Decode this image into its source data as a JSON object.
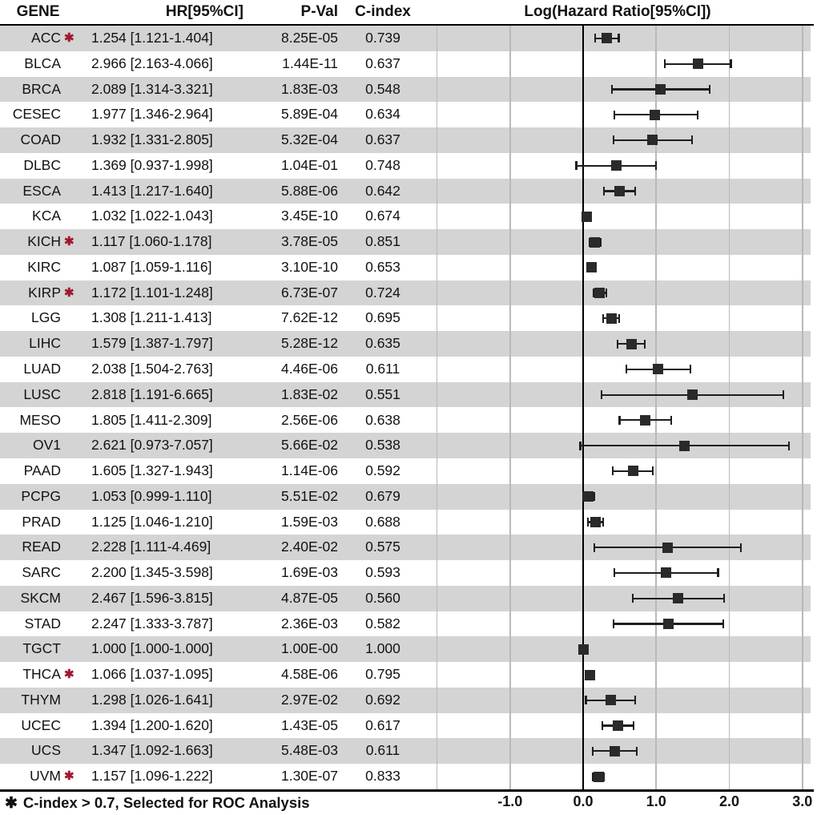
{
  "header": {
    "columns": [
      "GENE",
      "HR[95%CI]",
      "P-Val",
      "C-index"
    ]
  },
  "chart_data": {
    "type": "forest",
    "title": "Log(Hazard Ratio[95%CI])",
    "x_axis": {
      "scale": "log2(hazard ratio)",
      "tick_labels": [
        "-1.0",
        "0.0",
        "1.0",
        "2.0",
        "3.0"
      ],
      "tick_values": [
        -1,
        0,
        1,
        2,
        3
      ],
      "gridline_values": [
        -2,
        -1,
        1,
        2,
        3
      ],
      "zero_line_value": 0,
      "xlim": [
        -2.06,
        3.16
      ]
    },
    "rows": [
      {
        "gene": "ACC",
        "selected": true,
        "hr": 1.254,
        "lo": 1.121,
        "hi": 1.404,
        "hr_text": "1.254 [1.121-1.404]",
        "pval": "8.25E-05",
        "cindex": "0.739"
      },
      {
        "gene": "BLCA",
        "selected": false,
        "hr": 2.966,
        "lo": 2.163,
        "hi": 4.066,
        "hr_text": "2.966 [2.163-4.066]",
        "pval": "1.44E-11",
        "cindex": "0.637"
      },
      {
        "gene": "BRCA",
        "selected": false,
        "hr": 2.089,
        "lo": 1.314,
        "hi": 3.321,
        "hr_text": "2.089 [1.314-3.321]",
        "pval": "1.83E-03",
        "cindex": "0.548"
      },
      {
        "gene": "CESEC",
        "selected": false,
        "hr": 1.977,
        "lo": 1.346,
        "hi": 2.964,
        "hr_text": "1.977 [1.346-2.964]",
        "pval": "5.89E-04",
        "cindex": "0.634"
      },
      {
        "gene": "COAD",
        "selected": false,
        "hr": 1.932,
        "lo": 1.331,
        "hi": 2.805,
        "hr_text": "1.932 [1.331-2.805]",
        "pval": "5.32E-04",
        "cindex": "0.637"
      },
      {
        "gene": "DLBC",
        "selected": false,
        "hr": 1.369,
        "lo": 0.937,
        "hi": 1.998,
        "hr_text": "1.369 [0.937-1.998]",
        "pval": "1.04E-01",
        "cindex": "0.748"
      },
      {
        "gene": "ESCA",
        "selected": false,
        "hr": 1.413,
        "lo": 1.217,
        "hi": 1.64,
        "hr_text": "1.413 [1.217-1.640]",
        "pval": "5.88E-06",
        "cindex": "0.642"
      },
      {
        "gene": "KCA",
        "selected": false,
        "hr": 1.032,
        "lo": 1.022,
        "hi": 1.043,
        "hr_text": "1.032 [1.022-1.043]",
        "pval": "3.45E-10",
        "cindex": "0.674"
      },
      {
        "gene": "KICH",
        "selected": true,
        "hr": 1.117,
        "lo": 1.06,
        "hi": 1.178,
        "hr_text": "1.117 [1.060-1.178]",
        "pval": "3.78E-05",
        "cindex": "0.851"
      },
      {
        "gene": "KIRC",
        "selected": false,
        "hr": 1.087,
        "lo": 1.059,
        "hi": 1.116,
        "hr_text": "1.087 [1.059-1.116]",
        "pval": "3.10E-10",
        "cindex": "0.653"
      },
      {
        "gene": "KIRP",
        "selected": true,
        "hr": 1.172,
        "lo": 1.101,
        "hi": 1.248,
        "hr_text": "1.172 [1.101-1.248]",
        "pval": "6.73E-07",
        "cindex": "0.724"
      },
      {
        "gene": "LGG",
        "selected": false,
        "hr": 1.308,
        "lo": 1.211,
        "hi": 1.413,
        "hr_text": "1.308 [1.211-1.413]",
        "pval": "7.62E-12",
        "cindex": "0.695"
      },
      {
        "gene": "LIHC",
        "selected": false,
        "hr": 1.579,
        "lo": 1.387,
        "hi": 1.797,
        "hr_text": "1.579 [1.387-1.797]",
        "pval": "5.28E-12",
        "cindex": "0.635"
      },
      {
        "gene": "LUAD",
        "selected": false,
        "hr": 2.038,
        "lo": 1.504,
        "hi": 2.763,
        "hr_text": "2.038 [1.504-2.763]",
        "pval": "4.46E-06",
        "cindex": "0.611"
      },
      {
        "gene": "LUSC",
        "selected": false,
        "hr": 2.818,
        "lo": 1.191,
        "hi": 6.665,
        "hr_text": "2.818 [1.191-6.665]",
        "pval": "1.83E-02",
        "cindex": "0.551"
      },
      {
        "gene": "MESO",
        "selected": false,
        "hr": 1.805,
        "lo": 1.411,
        "hi": 2.309,
        "hr_text": "1.805 [1.411-2.309]",
        "pval": "2.56E-06",
        "cindex": "0.638"
      },
      {
        "gene": "OV1",
        "selected": false,
        "hr": 2.621,
        "lo": 0.973,
        "hi": 7.057,
        "hr_text": "2.621 [0.973-7.057]",
        "pval": "5.66E-02",
        "cindex": "0.538"
      },
      {
        "gene": "PAAD",
        "selected": false,
        "hr": 1.605,
        "lo": 1.327,
        "hi": 1.943,
        "hr_text": "1.605 [1.327-1.943]",
        "pval": "1.14E-06",
        "cindex": "0.592"
      },
      {
        "gene": "PCPG",
        "selected": false,
        "hr": 1.053,
        "lo": 0.999,
        "hi": 1.11,
        "hr_text": "1.053 [0.999-1.110]",
        "pval": "5.51E-02",
        "cindex": "0.679"
      },
      {
        "gene": "PRAD",
        "selected": false,
        "hr": 1.125,
        "lo": 1.046,
        "hi": 1.21,
        "hr_text": "1.125 [1.046-1.210]",
        "pval": "1.59E-03",
        "cindex": "0.688"
      },
      {
        "gene": "READ",
        "selected": false,
        "hr": 2.228,
        "lo": 1.111,
        "hi": 4.469,
        "hr_text": "2.228 [1.111-4.469]",
        "pval": "2.40E-02",
        "cindex": "0.575"
      },
      {
        "gene": "SARC",
        "selected": false,
        "hr": 2.2,
        "lo": 1.345,
        "hi": 3.598,
        "hr_text": "2.200 [1.345-3.598]",
        "pval": "1.69E-03",
        "cindex": "0.593"
      },
      {
        "gene": "SKCM",
        "selected": false,
        "hr": 2.467,
        "lo": 1.596,
        "hi": 3.815,
        "hr_text": "2.467 [1.596-3.815]",
        "pval": "4.87E-05",
        "cindex": "0.560"
      },
      {
        "gene": "STAD",
        "selected": false,
        "hr": 2.247,
        "lo": 1.333,
        "hi": 3.787,
        "hr_text": "2.247 [1.333-3.787]",
        "pval": "2.36E-03",
        "cindex": "0.582"
      },
      {
        "gene": "TGCT",
        "selected": false,
        "hr": 1.0,
        "lo": 1.0,
        "hi": 1.0,
        "hr_text": "1.000 [1.000-1.000]",
        "pval": "1.00E-00",
        "cindex": "1.000"
      },
      {
        "gene": "THCA",
        "selected": true,
        "hr": 1.066,
        "lo": 1.037,
        "hi": 1.095,
        "hr_text": "1.066 [1.037-1.095]",
        "pval": "4.58E-06",
        "cindex": "0.795"
      },
      {
        "gene": "THYM",
        "selected": false,
        "hr": 1.298,
        "lo": 1.026,
        "hi": 1.641,
        "hr_text": "1.298 [1.026-1.641]",
        "pval": "2.97E-02",
        "cindex": "0.692"
      },
      {
        "gene": "UCEC",
        "selected": false,
        "hr": 1.394,
        "lo": 1.2,
        "hi": 1.62,
        "hr_text": "1.394 [1.200-1.620]",
        "pval": "1.43E-05",
        "cindex": "0.617"
      },
      {
        "gene": "UCS",
        "selected": false,
        "hr": 1.347,
        "lo": 1.092,
        "hi": 1.663,
        "hr_text": "1.347 [1.092-1.663]",
        "pval": "5.48E-03",
        "cindex": "0.611"
      },
      {
        "gene": "UVM",
        "selected": true,
        "hr": 1.157,
        "lo": 1.096,
        "hi": 1.222,
        "hr_text": "1.157 [1.096-1.222]",
        "pval": "1.30E-07",
        "cindex": "0.833"
      }
    ]
  },
  "footer": {
    "marker": "✱",
    "note": "C-index > 0.7, Selected for ROC Analysis"
  },
  "colors": {
    "stripe": "#d4d4d4",
    "accent_red": "#a01830",
    "marker": "#2a2a2a",
    "error_bar": "#1e1e1e",
    "gridline": "#b9b9b9"
  }
}
